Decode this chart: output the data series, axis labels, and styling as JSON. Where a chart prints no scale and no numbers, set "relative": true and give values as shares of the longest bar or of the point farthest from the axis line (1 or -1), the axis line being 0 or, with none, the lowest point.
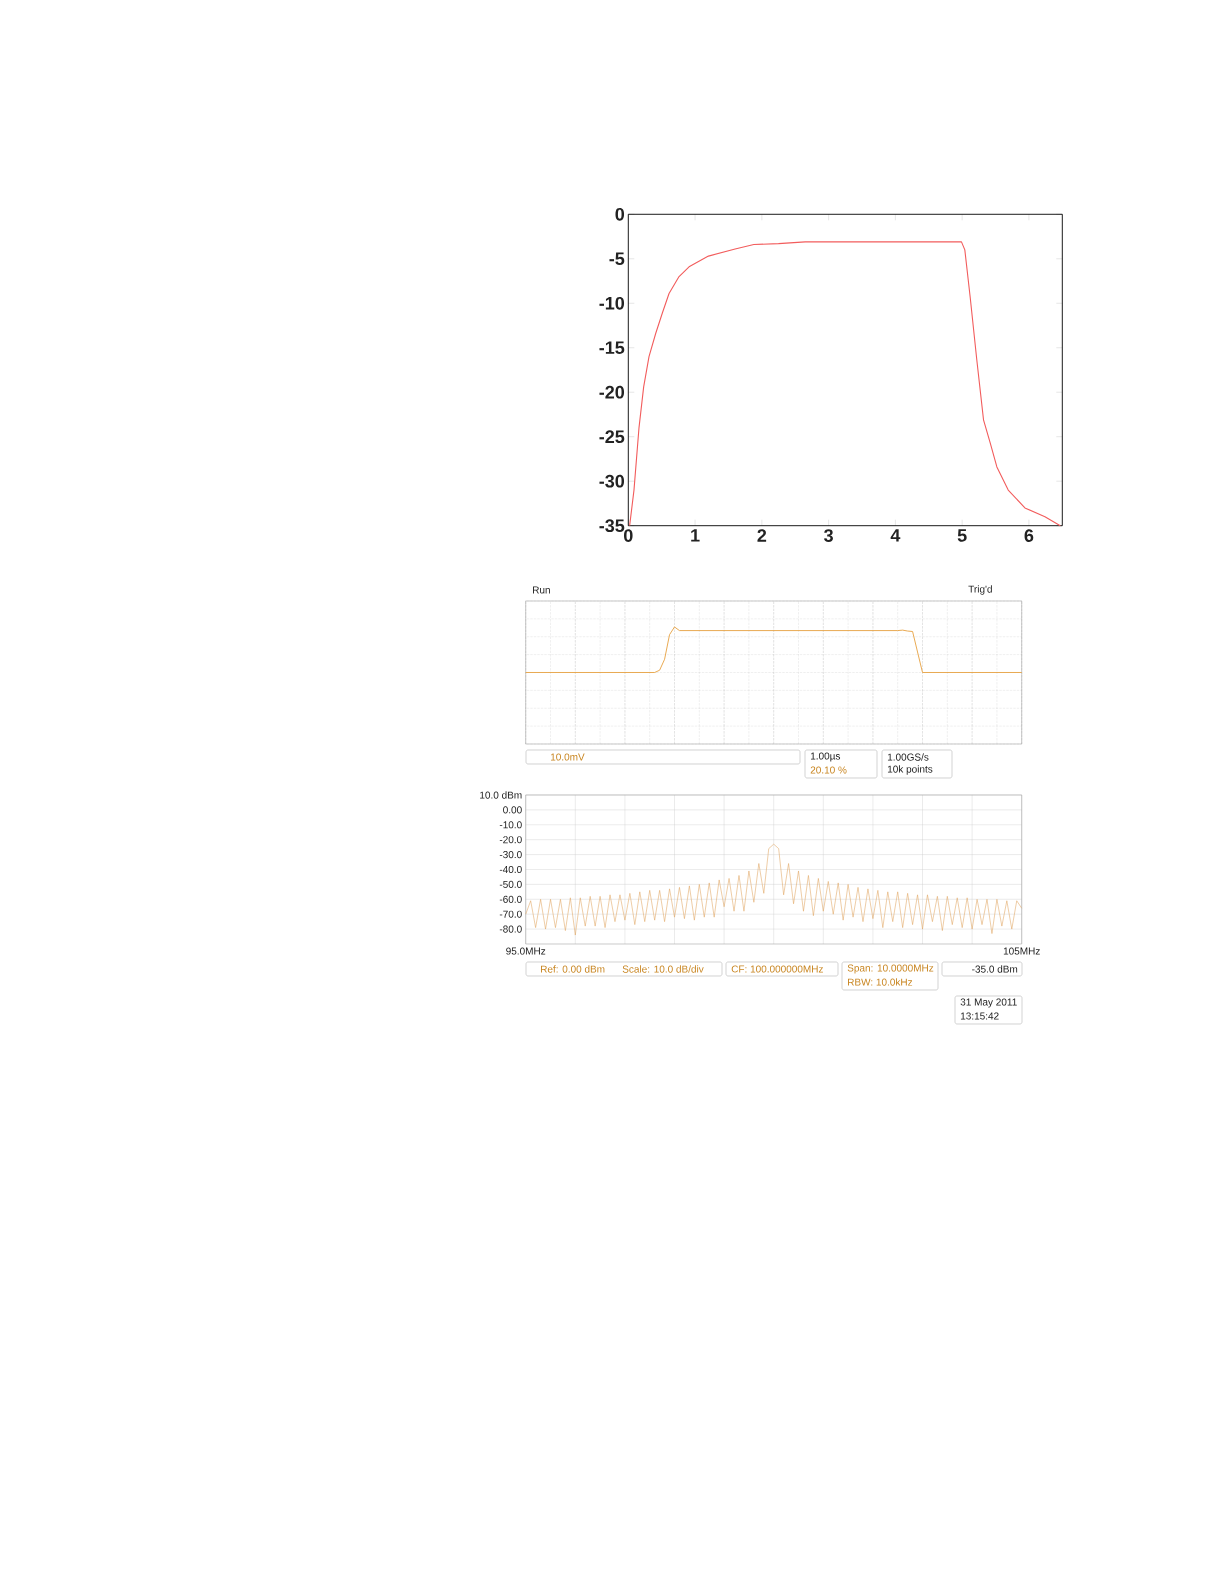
{
  "chart_data": [
    {
      "type": "line",
      "x": [
        0.02,
        0.085,
        0.16,
        0.23,
        0.31,
        0.41,
        0.51,
        0.61,
        0.76,
        0.91,
        1.2,
        1.6,
        1.88,
        2.25,
        2.65,
        4.99,
        5.04,
        5.12,
        5.22,
        5.32,
        5.42,
        5.52,
        5.69,
        5.94,
        6.24,
        6.47
      ],
      "values": [
        -35,
        -31,
        -24,
        -19.4,
        -16,
        -13.4,
        -11.1,
        -8.9,
        -7,
        -5.9,
        -4.7,
        -3.9,
        -3.4,
        -3.3,
        -3.1,
        -3.1,
        -4,
        -9.3,
        -16.4,
        -23.1,
        -25.7,
        -28.4,
        -31,
        -33,
        -34,
        -35
      ],
      "color": "#f25c5c",
      "xlim": [
        0,
        6.5
      ],
      "ylim": [
        -35,
        0
      ],
      "xticks": [
        0,
        1,
        2,
        3,
        4,
        5,
        6
      ],
      "yticks": [
        0,
        -5,
        -10,
        -15,
        -20,
        -25,
        -30,
        -35
      ]
    },
    {
      "type": "line",
      "relative": true,
      "categories": [
        null,
        null,
        null,
        null,
        null,
        null,
        null,
        null,
        null,
        null,
        null,
        null,
        null,
        null,
        null,
        null,
        null,
        null,
        null,
        null,
        null,
        null,
        null,
        null,
        null,
        null,
        null,
        null,
        null,
        null,
        null,
        null,
        null,
        null,
        null,
        null,
        null,
        null,
        null,
        null,
        null,
        null,
        null,
        null,
        null,
        null,
        null,
        null,
        null,
        null,
        null,
        null,
        null,
        null,
        null,
        null,
        null,
        null,
        null,
        null,
        null,
        null,
        null,
        null,
        null,
        null,
        null,
        null,
        null,
        null,
        null,
        null,
        null,
        null,
        null,
        null,
        null,
        null,
        null,
        null,
        null,
        null,
        null,
        null,
        null,
        null,
        null,
        null,
        null,
        null,
        null,
        null,
        null,
        null,
        null,
        null,
        null,
        null,
        null,
        null,
        null
      ],
      "values": [
        0,
        0,
        0,
        0,
        0,
        0,
        0,
        0,
        0,
        0,
        0,
        0,
        0,
        0,
        0,
        0,
        0,
        0,
        0,
        0,
        0,
        0,
        0,
        0,
        0,
        0,
        0,
        0.05,
        0.29,
        0.83,
        1,
        0.92,
        0.92,
        0.92,
        0.92,
        0.92,
        0.92,
        0.92,
        0.92,
        0.92,
        0.92,
        0.92,
        0.92,
        0.92,
        0.92,
        0.92,
        0.92,
        0.92,
        0.92,
        0.92,
        0.92,
        0.92,
        0.92,
        0.92,
        0.92,
        0.92,
        0.92,
        0.92,
        0.92,
        0.92,
        0.92,
        0.92,
        0.92,
        0.92,
        0.92,
        0.92,
        0.92,
        0.92,
        0.92,
        0.92,
        0.92,
        0.92,
        0.92,
        0.92,
        0.92,
        0.92,
        0.93,
        0.91,
        0.9,
        0.45,
        0,
        0,
        0,
        0,
        0,
        0,
        0,
        0,
        0,
        0,
        0,
        0,
        0,
        0,
        0,
        0,
        0,
        0,
        0,
        0,
        0
      ],
      "color": "#e6a040",
      "grid": true,
      "annotations": [
        "Run",
        "Trig'd",
        "10.0mV",
        "1.00µs",
        "20.10 %",
        "1.00GS/s",
        "10k points"
      ]
    },
    {
      "type": "line",
      "x": [
        95,
        95.1,
        95.2,
        95.3,
        95.4,
        95.5,
        95.6,
        95.7,
        95.8,
        95.9,
        96,
        96.1,
        96.2,
        96.3,
        96.4,
        96.5,
        96.6,
        96.7,
        96.8,
        96.9,
        97,
        97.1,
        97.2,
        97.3,
        97.4,
        97.5,
        97.6,
        97.7,
        97.8,
        97.9,
        98,
        98.1,
        98.2,
        98.3,
        98.4,
        98.5,
        98.6,
        98.7,
        98.8,
        98.9,
        99,
        99.1,
        99.2,
        99.3,
        99.4,
        99.5,
        99.6,
        99.7,
        99.8,
        99.9,
        100,
        100.1,
        100.2,
        100.3,
        100.4,
        100.5,
        100.6,
        100.7,
        100.8,
        100.9,
        101,
        101.1,
        101.2,
        101.3,
        101.4,
        101.5,
        101.6,
        101.7,
        101.8,
        101.9,
        102,
        102.1,
        102.2,
        102.3,
        102.4,
        102.5,
        102.6,
        102.7,
        102.8,
        102.9,
        103,
        103.1,
        103.2,
        103.3,
        103.4,
        103.5,
        103.6,
        103.7,
        103.8,
        103.9,
        104,
        104.1,
        104.2,
        104.3,
        104.4,
        104.5,
        104.6,
        104.7,
        104.8,
        104.9,
        105
      ],
      "values": [
        -70,
        -61,
        -79,
        -60,
        -80,
        -60,
        -79,
        -60,
        -81,
        -59,
        -84,
        -59,
        -78,
        -58,
        -78,
        -58,
        -79,
        -57,
        -75,
        -57,
        -74,
        -56,
        -77,
        -55,
        -75,
        -54,
        -74,
        -54,
        -75,
        -53,
        -72,
        -52,
        -73,
        -51,
        -74,
        -50,
        -72,
        -49,
        -72,
        -47,
        -65,
        -46,
        -68,
        -44,
        -68,
        -41,
        -62,
        -36,
        -56,
        -26,
        -23,
        -26,
        -57,
        -36,
        -63,
        -41,
        -68,
        -44,
        -71,
        -46,
        -68,
        -48,
        -70,
        -49,
        -74,
        -50,
        -72,
        -52,
        -75,
        -53,
        -73,
        -54,
        -79,
        -55,
        -75,
        -55,
        -79,
        -56,
        -77,
        -57,
        -80,
        -57,
        -75,
        -58,
        -81,
        -58,
        -77,
        -59,
        -79,
        -59,
        -80,
        -60,
        -77,
        -60,
        -83,
        -60,
        -78,
        -61,
        -80,
        -61,
        -66
      ],
      "color": "#e0a35e",
      "xlim": [
        95,
        105
      ],
      "ylim": [
        -90,
        10
      ],
      "xticks": [
        {
          "value": 95,
          "label": "95.0MHz"
        },
        {
          "value": 96,
          "label": null
        },
        {
          "value": 97,
          "label": null
        },
        {
          "value": 98,
          "label": null
        },
        {
          "value": 99,
          "label": null
        },
        {
          "value": 100,
          "label": null
        },
        {
          "value": 101,
          "label": null
        },
        {
          "value": 102,
          "label": null
        },
        {
          "value": 103,
          "label": null
        },
        {
          "value": 104,
          "label": null
        },
        {
          "value": 105,
          "label": "105MHz"
        }
      ],
      "yticks": [
        {
          "value": 10,
          "label": "10.0 dBm"
        },
        {
          "value": 0,
          "label": "0.00"
        },
        {
          "value": -10,
          "label": "-10.0"
        },
        {
          "value": -20,
          "label": "-20.0"
        },
        {
          "value": -30,
          "label": "-30.0"
        },
        {
          "value": -40,
          "label": "-40.0"
        },
        {
          "value": -50,
          "label": "-50.0"
        },
        {
          "value": -60,
          "label": "-60.0"
        },
        {
          "value": -70,
          "label": "-70.0"
        },
        {
          "value": -80,
          "label": "-80.0"
        }
      ],
      "grid": true,
      "annotations": [
        "Ref: 0.00 dBm",
        "Scale: 10.0 dB/div",
        "CF: 100.000000MHz",
        "Span: 10.0000MHz",
        "RBW: 10.0kHz",
        "-35.0 dBm",
        "31 May 2011",
        "13:15:42"
      ]
    }
  ]
}
